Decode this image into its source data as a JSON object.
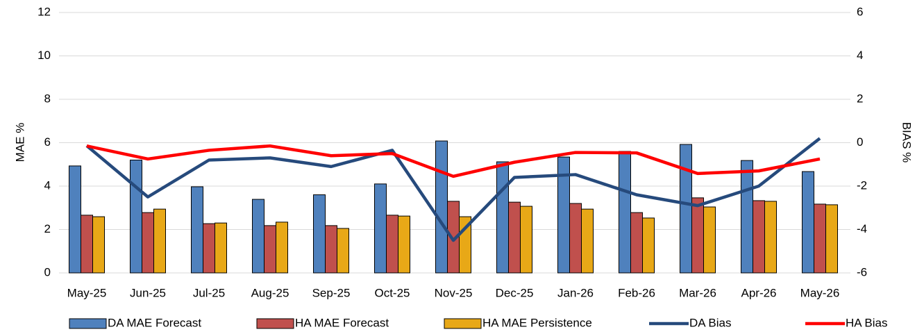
{
  "chart_data": {
    "type": "bar",
    "categories": [
      "May-25",
      "Jun-25",
      "Jul-25",
      "Aug-25",
      "Sep-25",
      "Oct-25",
      "Nov-25",
      "Dec-25",
      "Jan-26",
      "Feb-26",
      "Mar-26",
      "Apr-26",
      "May-26"
    ],
    "y_label": "MAE %",
    "y2_label": "BIAS %",
    "ylim": [
      0,
      12
    ],
    "yticks": [
      0,
      2,
      4,
      6,
      8,
      10,
      12
    ],
    "y2lim": [
      -6,
      6
    ],
    "y2ticks": [
      -6,
      -4,
      -2,
      0,
      2,
      4,
      6
    ],
    "grid": true,
    "legend": "bottom",
    "series": [
      {
        "name": "DA MAE Forecast",
        "type": "bar",
        "color": "#4f81bd",
        "values": [
          4.93,
          5.2,
          3.97,
          3.39,
          3.6,
          4.1,
          6.08,
          5.12,
          5.34,
          5.6,
          5.92,
          5.18,
          4.67
        ]
      },
      {
        "name": "HA MAE Forecast",
        "type": "bar",
        "color": "#c0504d",
        "values": [
          2.66,
          2.78,
          2.27,
          2.18,
          2.18,
          2.66,
          3.3,
          3.26,
          3.2,
          2.78,
          3.46,
          3.33,
          3.17
        ]
      },
      {
        "name": "HA MAE Persistence",
        "type": "bar",
        "color": "#e8a817",
        "values": [
          2.59,
          2.94,
          2.3,
          2.34,
          2.05,
          2.62,
          2.59,
          3.07,
          2.94,
          2.53,
          3.04,
          3.3,
          3.14
        ]
      },
      {
        "name": "DA Bias",
        "type": "line",
        "axis": "y2",
        "color": "#264a7c",
        "values": [
          -0.14,
          -2.5,
          -0.8,
          -0.7,
          -1.1,
          -0.35,
          -4.5,
          -1.6,
          -1.47,
          -2.4,
          -2.9,
          -2.0,
          0.2
        ]
      },
      {
        "name": "HA Bias",
        "type": "line",
        "axis": "y2",
        "color": "#ff0000",
        "values": [
          -0.15,
          -0.75,
          -0.35,
          -0.15,
          -0.6,
          -0.5,
          -1.55,
          -0.9,
          -0.45,
          -0.47,
          -1.42,
          -1.3,
          -0.75
        ]
      }
    ]
  }
}
